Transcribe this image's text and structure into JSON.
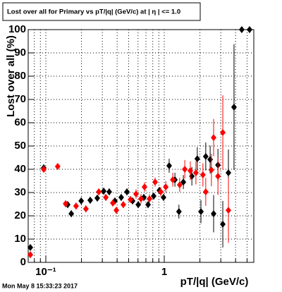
{
  "chart_data": {
    "type": "scatter",
    "title": "Lost over all for Primary vs pT/|q| (GeV/c) at | η | <= 1.0",
    "x_label": "pT/|q| (GeV/c)",
    "y_label": "Lost over all (%)",
    "footer": "Mon May  8 15:33:23 2017",
    "log_x": true,
    "xlim": [
      0.071,
      5.7
    ],
    "ylim": [
      0,
      100
    ],
    "xticks": [
      {
        "value": 0.1,
        "label": "10⁻¹"
      },
      1
    ],
    "xgrid": [
      0.08,
      0.09,
      0.2,
      0.3,
      0.4,
      0.5,
      0.6,
      0.7,
      0.8,
      0.9,
      2,
      3,
      4,
      5
    ],
    "yticks": [
      0,
      10,
      20,
      30,
      40,
      50,
      60,
      70,
      80,
      90,
      100
    ],
    "grid": true,
    "series": [
      {
        "color": "#000000",
        "x": [
          0.074,
          0.096,
          0.153,
          0.164,
          0.199,
          0.237,
          0.272,
          0.308,
          0.343,
          0.383,
          0.433,
          0.484,
          0.54,
          0.603,
          0.672,
          0.73,
          0.814,
          0.909,
          0.986,
          1.1,
          1.23,
          1.33,
          1.45,
          1.71,
          1.9,
          2.04,
          2.24,
          2.44,
          2.61,
          2.84,
          3.12,
          3.48,
          3.88,
          4.51,
          5.25
        ],
        "values": [
          6.4,
          40.6,
          24.8,
          20.9,
          26.4,
          26.7,
          27.6,
          30.6,
          30.3,
          26.4,
          27.9,
          30.3,
          26.4,
          24.8,
          27.9,
          24.8,
          28.5,
          30.9,
          27.9,
          41.5,
          35.5,
          21.8,
          34.5,
          37,
          44.5,
          21.8,
          45.5,
          44.2,
          20.9,
          41.8,
          16.4,
          38.5,
          66.7,
          100,
          100
        ],
        "errors": [
          1,
          1.5,
          1.5,
          1.5,
          1.5,
          1.5,
          1.5,
          1.5,
          1.5,
          1.5,
          1.5,
          1.5,
          1.5,
          1.5,
          1.5,
          1.5,
          1.5,
          1.5,
          1.5,
          3,
          3,
          3,
          3,
          4,
          5,
          5,
          6,
          6,
          8,
          7,
          10,
          10,
          27,
          0,
          0
        ]
      },
      {
        "color": "#ff0000",
        "x": [
          0.074,
          0.096,
          0.126,
          0.147,
          0.18,
          0.218,
          0.28,
          0.321,
          0.368,
          0.394,
          0.451,
          0.518,
          0.578,
          0.636,
          0.681,
          0.75,
          0.837,
          0.934,
          1.03,
          1.18,
          1.35,
          1.49,
          1.66,
          1.85,
          2.12,
          2.24,
          2.5,
          2.61,
          2.84,
          3.12,
          3.48
        ],
        "values": [
          3.3,
          40,
          41.2,
          25.2,
          24.2,
          23,
          30.3,
          27.9,
          25.5,
          22.4,
          24.8,
          27,
          29.4,
          27.3,
          32.4,
          27.3,
          34.5,
          30.3,
          32.4,
          35.5,
          33.3,
          40,
          39.4,
          38.5,
          37.6,
          30.3,
          39.7,
          53.6,
          37,
          55.8,
          22.4
        ],
        "errors": [
          1,
          1.5,
          1,
          1.5,
          1.5,
          1.5,
          1.5,
          1.5,
          1.5,
          1.5,
          1.5,
          1.5,
          2,
          2,
          2,
          2,
          2,
          2,
          2.5,
          3,
          3,
          4,
          4,
          5,
          5,
          6,
          7,
          8,
          8,
          16,
          14
        ]
      }
    ]
  }
}
